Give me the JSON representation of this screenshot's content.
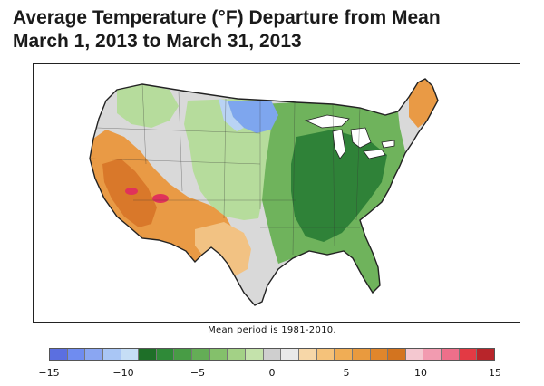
{
  "title_line1": "Average Temperature (°F) Departure from Mean",
  "title_line2": "March 1, 2013 to March 31, 2013",
  "note": "Mean period is 1981-2010.",
  "legend": {
    "min": -15,
    "max": 15,
    "tick_labels": [
      "−15",
      "−10",
      "−5",
      "0",
      "5",
      "10",
      "15"
    ],
    "colors": [
      "#5b6fe0",
      "#6f8cf0",
      "#8aa6f2",
      "#a9c6f5",
      "#c6def6",
      "#1e6f28",
      "#2f8a38",
      "#489c45",
      "#64ad56",
      "#84c06b",
      "#a3d186",
      "#c4e2ab",
      "#cfcfcf",
      "#e9e9e9",
      "#f7d7a8",
      "#f5c27a",
      "#f0ad55",
      "#e99a3e",
      "#e0862c",
      "#d3741f",
      "#f4c8d0",
      "#f29bb0",
      "#ee6f8a",
      "#e33a44",
      "#b8252a"
    ]
  },
  "map_colors": {
    "water": "#ffffff",
    "neutral": "#d9d9d9",
    "warm_light": "#f2c283",
    "warm": "#e99a45",
    "warm_strong": "#d9782a",
    "hot": "#e0325a",
    "cool_light": "#b6dc9c",
    "cool": "#6fb35c",
    "cool_dark": "#2f8238",
    "cold": "#7ea6ee",
    "cold_light": "#b9d3f4",
    "border": "#222222"
  }
}
